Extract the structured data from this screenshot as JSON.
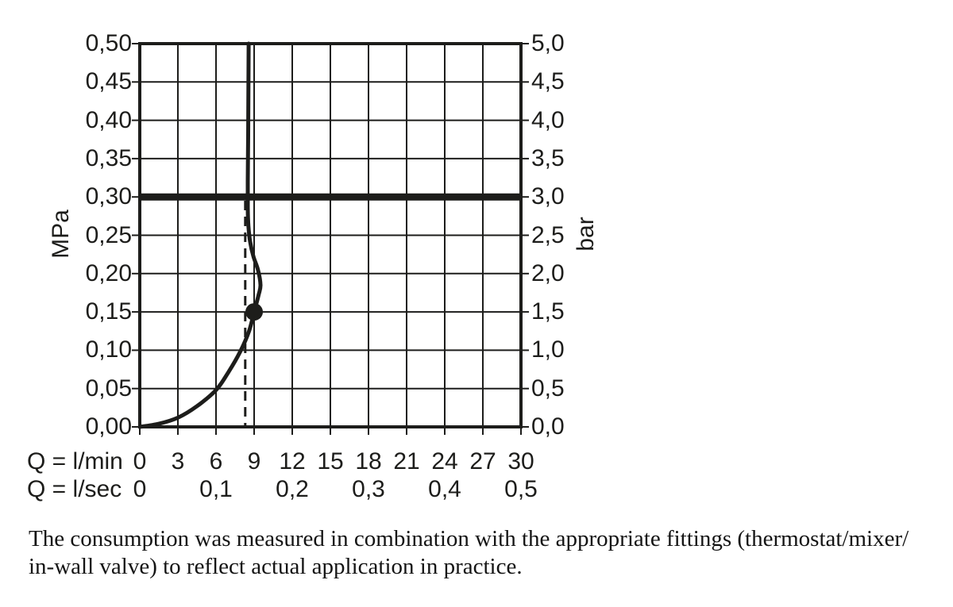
{
  "chart": {
    "y_axis_left": {
      "unit": "MPa",
      "ticks": [
        "0,50",
        "0,45",
        "0,40",
        "0,35",
        "0,30",
        "0,25",
        "0,20",
        "0,15",
        "0,10",
        "0,05",
        "0,00"
      ]
    },
    "y_axis_right": {
      "unit": "bar",
      "ticks": [
        "5,0",
        "4,5",
        "4,0",
        "3,5",
        "3,0",
        "2,5",
        "2,0",
        "1,5",
        "1,0",
        "0,5",
        "0,0"
      ]
    },
    "x_axis_row1": {
      "label": "Q = l/min",
      "ticks": [
        "0",
        "3",
        "6",
        "9",
        "12",
        "15",
        "18",
        "21",
        "24",
        "27",
        "30"
      ]
    },
    "x_axis_row2": {
      "label": "Q = l/sec",
      "ticks": [
        "0",
        "0,1",
        "0,2",
        "0,3",
        "0,4",
        "0,5"
      ]
    }
  },
  "chart_data": {
    "type": "line",
    "title": "",
    "xlabel": "Q = l/min / Q = l/sec",
    "ylabel_left": "MPa",
    "ylabel_right": "bar",
    "xlim": [
      0,
      30
    ],
    "ylim": [
      0,
      0.5
    ],
    "x_tick_step_lmin": 3,
    "y_tick_step_mpa": 0.05,
    "grid": "on",
    "line_color": "#1d1d1b",
    "series": [
      {
        "name": "flow-pressure-curve",
        "points": [
          [
            0,
            0
          ],
          [
            1.5,
            0.004
          ],
          [
            3,
            0.012
          ],
          [
            4.5,
            0.027
          ],
          [
            6,
            0.048
          ],
          [
            7,
            0.072
          ],
          [
            7.9,
            0.098
          ],
          [
            8.6,
            0.125
          ],
          [
            9.0,
            0.15
          ],
          [
            9.35,
            0.172
          ],
          [
            9.5,
            0.185
          ],
          [
            9.3,
            0.205
          ],
          [
            8.95,
            0.222
          ],
          [
            8.68,
            0.242
          ],
          [
            8.55,
            0.262
          ],
          [
            8.5,
            0.285
          ],
          [
            8.5,
            0.32
          ],
          [
            8.53,
            0.38
          ],
          [
            8.55,
            0.44
          ],
          [
            8.57,
            0.5
          ]
        ]
      }
    ],
    "marker_point": {
      "q_lmin": 9.0,
      "p_mpa": 0.15
    },
    "reference_pressure_mpa": 0.3,
    "dashed_line_q_lmin": 8.3,
    "dashed_line_p_top_mpa": 0.295
  },
  "caption": {
    "lines": [
      "The consumption was measured in combination with the appropriate fittings (thermostat/mixer/",
      "in-wall valve) to reflect actual application in practice."
    ]
  }
}
